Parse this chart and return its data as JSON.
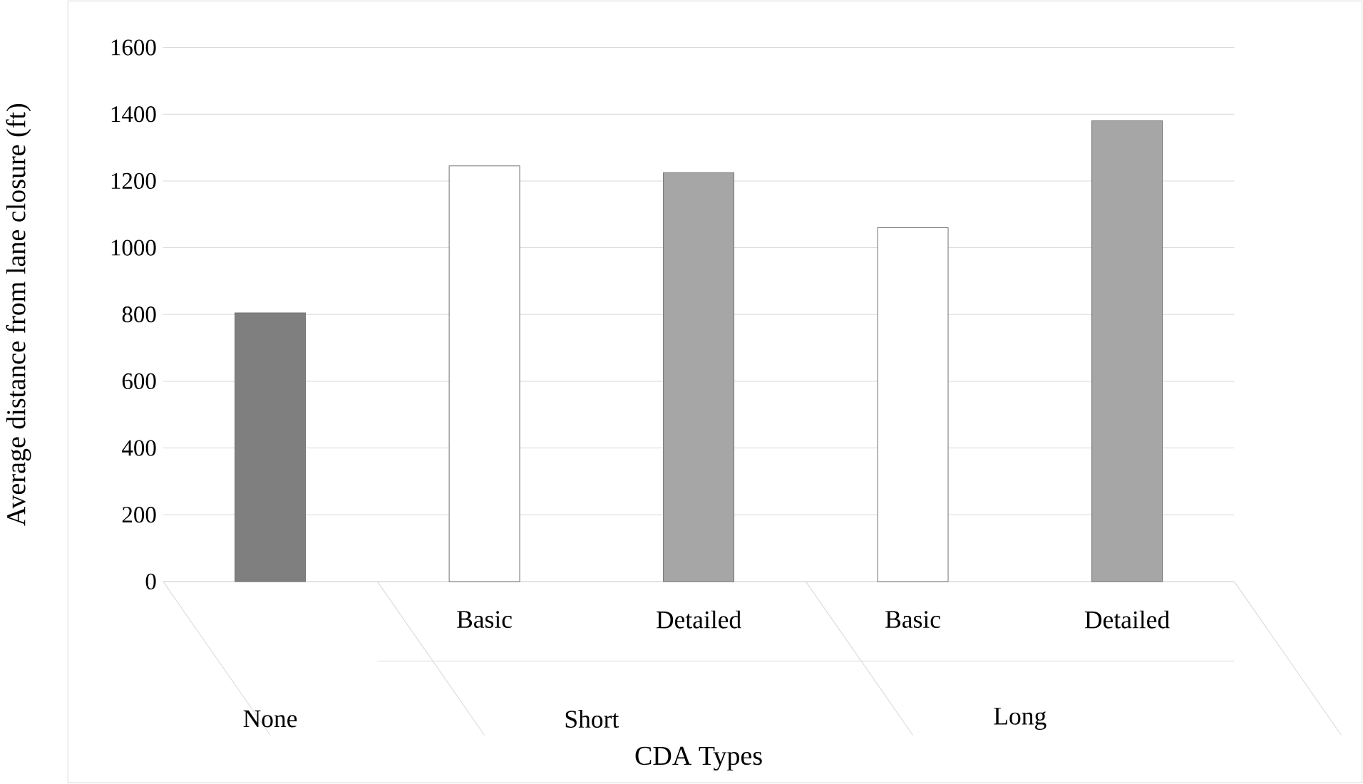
{
  "chart_data": {
    "type": "bar",
    "xlabel": "CDA Types",
    "ylabel": "Average distance from lane closure (ft)",
    "categories": [
      null,
      "Basic",
      "Detailed",
      "Basic",
      "Detailed"
    ],
    "values": [
      805,
      1245,
      1225,
      1060,
      1380
    ],
    "colors": [
      "#7f7f7f",
      "#ffffff",
      "#a6a6a6",
      "#ffffff",
      "#a6a6a6"
    ],
    "annotations": [
      "None",
      "Short",
      "Long"
    ],
    "ylim": [
      0,
      1600
    ],
    "yticks": [
      0,
      200,
      400,
      600,
      800,
      1000,
      1200,
      1400,
      1600
    ],
    "grid": "y"
  }
}
